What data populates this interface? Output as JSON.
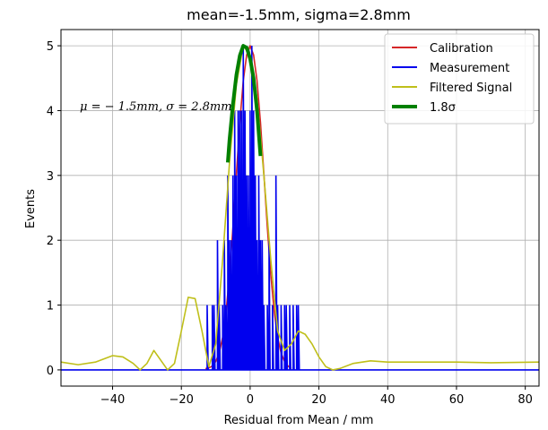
{
  "chart_data": {
    "type": "line",
    "title": "mean=-1.5mm, sigma=2.8mm",
    "xlabel": "Residual from Mean / mm",
    "ylabel": "Events",
    "xlim": [
      -55,
      84
    ],
    "ylim": [
      -0.25,
      5.25
    ],
    "xticks": [
      -40,
      -20,
      0,
      20,
      40,
      60,
      80
    ],
    "yticks": [
      0,
      1,
      2,
      3,
      4,
      5
    ],
    "grid": true,
    "legend_position": "top-right",
    "annotation": "μ = − 1.5mm, σ = 2.8mm",
    "colors": {
      "calibration": "#d62728",
      "measurement": "#0000ee",
      "filtered": "#bfbf1a",
      "sigma": "#008000"
    },
    "series": [
      {
        "key": "calibration",
        "name": "Calibration",
        "x": [
          -13,
          -12,
          -11,
          -10,
          -9,
          -8,
          -7,
          -6,
          -5,
          -4,
          -3,
          -2,
          -1,
          0,
          1,
          2,
          3,
          4,
          5,
          6,
          7,
          8,
          9,
          10,
          11,
          12
        ],
        "y": [
          0.02,
          0.03,
          0.06,
          0.13,
          0.26,
          0.5,
          0.9,
          1.47,
          2.2,
          3.02,
          3.82,
          4.46,
          4.86,
          5.0,
          4.86,
          4.46,
          3.82,
          3.02,
          2.2,
          1.47,
          0.9,
          0.5,
          0.26,
          0.13,
          0.06,
          0.02
        ]
      },
      {
        "key": "measurement",
        "name": "Measurement",
        "x": [
          -12.5,
          -11.0,
          -10.5,
          -9.5,
          -9.0,
          -8.0,
          -7.5,
          -7.0,
          -6.5,
          -6.0,
          -5.5,
          -5.0,
          -4.5,
          -4.0,
          -3.5,
          -3.0,
          -2.5,
          -2.0,
          -1.5,
          -1.0,
          -0.5,
          0.0,
          0.5,
          1.0,
          1.5,
          2.0,
          2.5,
          3.0,
          3.5,
          4.0,
          5.0,
          5.5,
          6.5,
          7.5,
          8.0,
          9.0,
          10.0,
          10.5,
          11.5,
          12.5,
          13.5,
          14.0
        ],
        "y": [
          1,
          1,
          1,
          2,
          1,
          1,
          2,
          1,
          3,
          2,
          2,
          3,
          4,
          3,
          4,
          4,
          4,
          5,
          4,
          3,
          3,
          4,
          5,
          4,
          3,
          2,
          3,
          2,
          2,
          1,
          1,
          2,
          1,
          3,
          1,
          1,
          1,
          1,
          1,
          1,
          1,
          1
        ]
      },
      {
        "key": "filtered",
        "name": "Filtered Signal",
        "x": [
          -55,
          -50,
          -45,
          -40,
          -37,
          -34,
          -32,
          -30,
          -28,
          -26,
          -24,
          -22,
          -20,
          -18,
          -16,
          -14,
          -12,
          -10,
          -8,
          -6,
          -4,
          -2,
          0,
          2,
          4,
          6,
          8,
          10,
          12,
          14,
          16,
          18,
          20,
          22,
          24,
          26,
          30,
          35,
          40,
          50,
          60,
          70,
          84
        ],
        "y": [
          0.12,
          0.08,
          0.12,
          0.22,
          0.2,
          0.1,
          0.0,
          0.1,
          0.3,
          0.15,
          0.0,
          0.1,
          0.6,
          1.12,
          1.1,
          0.6,
          0.05,
          0.4,
          1.7,
          3.2,
          4.4,
          5.0,
          4.85,
          4.2,
          3.0,
          1.7,
          0.6,
          0.3,
          0.4,
          0.6,
          0.55,
          0.4,
          0.2,
          0.05,
          0.0,
          0.02,
          0.1,
          0.14,
          0.12,
          0.12,
          0.12,
          0.11,
          0.12
        ]
      },
      {
        "key": "sigma",
        "name": "1.8σ",
        "x": [
          -6.5,
          -6,
          -5,
          -4,
          -3,
          -2,
          -1,
          0,
          1,
          2,
          3
        ],
        "y": [
          3.2,
          3.55,
          4.1,
          4.55,
          4.85,
          5.0,
          4.97,
          4.8,
          4.5,
          4.0,
          3.3
        ]
      }
    ]
  }
}
